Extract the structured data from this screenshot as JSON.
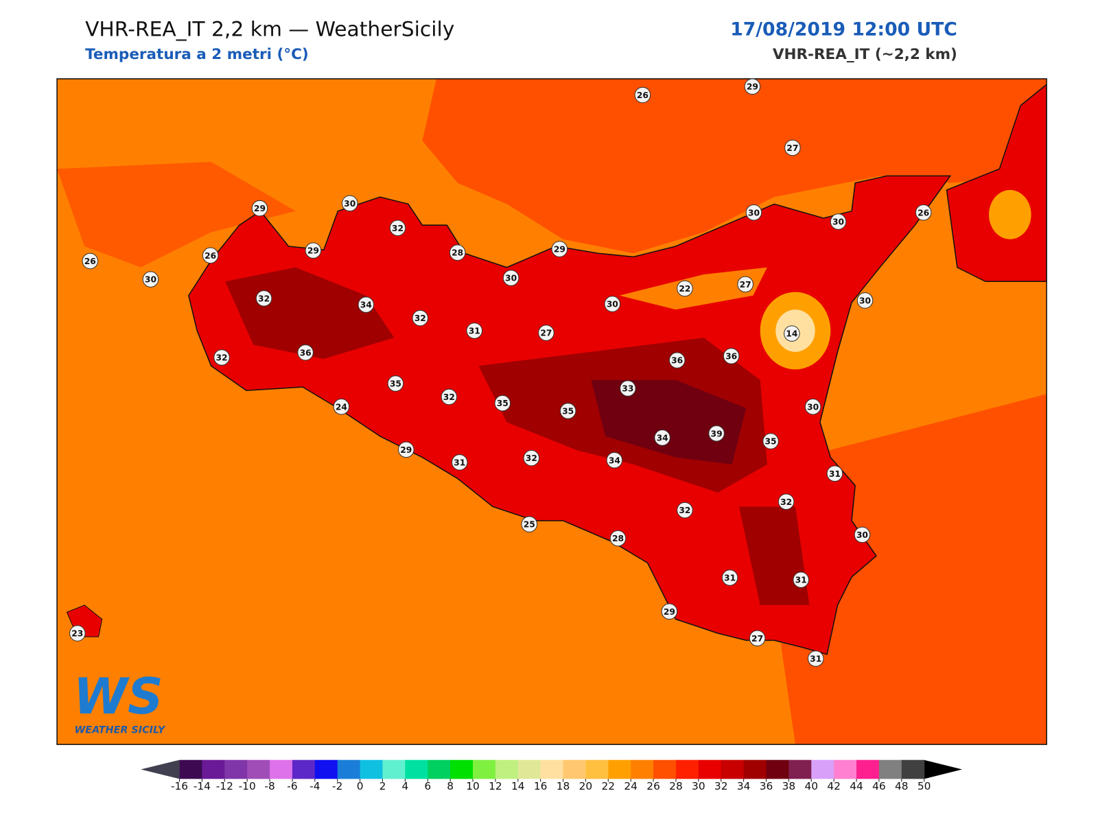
{
  "header": {
    "title": "VHR-REA_IT 2,2 km — WeatherSicily",
    "subtitle": "Temperatura a 2 metri (°C)",
    "datetime": "17/08/2019 12:00 UTC",
    "model": "VHR-REA_IT (~2,2 km)"
  },
  "stations": [
    26,
    29,
    27,
    29,
    30,
    32,
    29,
    28,
    29,
    30,
    30,
    26,
    26,
    26,
    30,
    30,
    22,
    27,
    30,
    30,
    32,
    34,
    32,
    31,
    27,
    14,
    36,
    32,
    36,
    36,
    35,
    33,
    32,
    35,
    35,
    24,
    30,
    39,
    34,
    35,
    29,
    31,
    32,
    34,
    31,
    32,
    32,
    25,
    28,
    30,
    31,
    31,
    29,
    23,
    27,
    31
  ],
  "colorbar": {
    "ticks": [
      -16,
      -14,
      -12,
      -10,
      -8,
      -6,
      -4,
      -2,
      0,
      2,
      4,
      6,
      8,
      10,
      12,
      14,
      16,
      18,
      20,
      22,
      24,
      26,
      28,
      30,
      32,
      34,
      36,
      38,
      40,
      42,
      44,
      46,
      48,
      50
    ],
    "colors": [
      "#3d0a52",
      "#6a1a96",
      "#8035a8",
      "#a04db8",
      "#de72ea",
      "#5c28c8",
      "#1010f0",
      "#1a7ed8",
      "#10c0e0",
      "#60f0d0",
      "#00e0a0",
      "#00d060",
      "#00e000",
      "#80f040",
      "#c0f080",
      "#e0e898",
      "#ffe0a0",
      "#ffc870",
      "#ffc040",
      "#ffa000",
      "#ff8000",
      "#ff5000",
      "#ff2000",
      "#e80000",
      "#c80000",
      "#a00000",
      "#700010",
      "#802050",
      "#d8a0f8",
      "#ff80d0",
      "#ff2090",
      "#808080",
      "#404040"
    ],
    "under_color": "#404050",
    "over_color": "#000000"
  },
  "logo": {
    "mark": "WS",
    "name": "WEATHER SICILY"
  }
}
